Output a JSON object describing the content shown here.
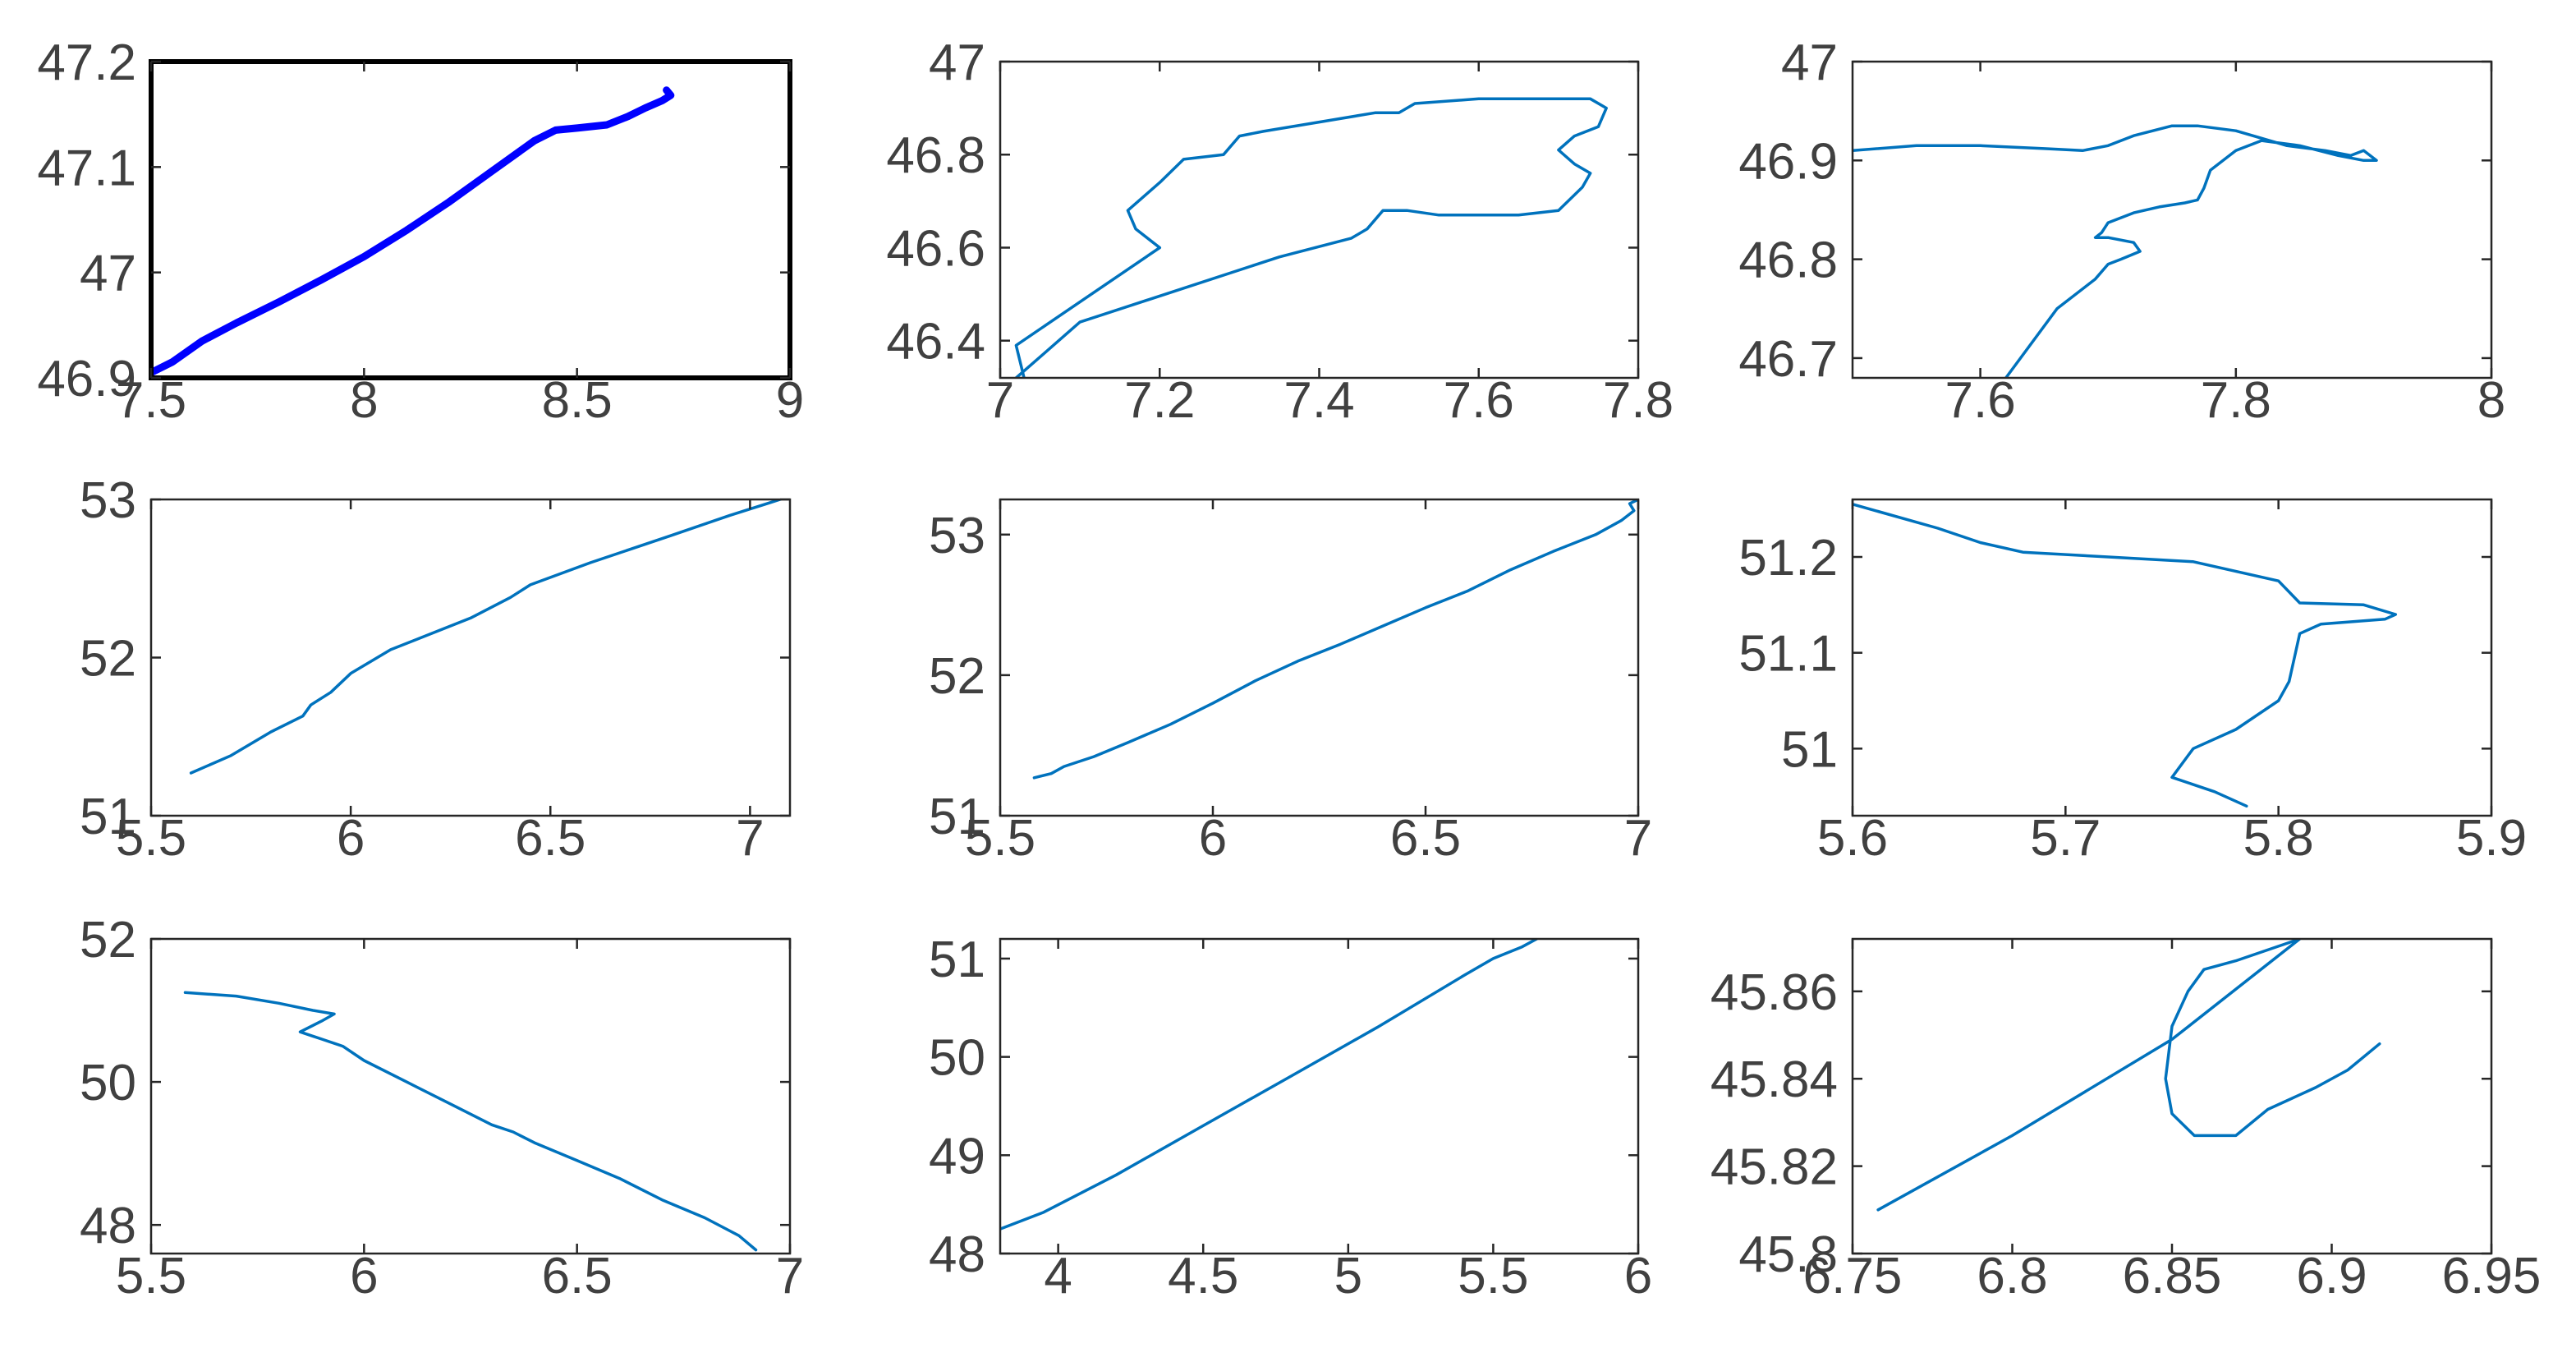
{
  "colors": {
    "background": "#ffffff",
    "axis": "#262626",
    "tick_label": "#404040",
    "trajectory": "#0072bd",
    "trajectory_highlight": "#0000ff",
    "highlight_frame": "#000000"
  },
  "chart_data": [
    {
      "type": "line",
      "xlim": [
        7.5,
        9
      ],
      "ylim": [
        46.9,
        47.2
      ],
      "xticks": [
        {
          "v": 7.5,
          "label": "7.5"
        },
        {
          "v": 8,
          "label": "8"
        },
        {
          "v": 8.5,
          "label": "8.5"
        },
        {
          "v": 9,
          "label": "9"
        }
      ],
      "yticks": [
        {
          "v": 46.9,
          "label": "46.9"
        },
        {
          "v": 47,
          "label": "47"
        },
        {
          "v": 47.1,
          "label": "47.1"
        },
        {
          "v": 47.2,
          "label": "47.2"
        }
      ],
      "highlight": true,
      "grid": false,
      "series": [
        {
          "x": [
            7.5,
            7.55,
            7.62,
            7.7,
            7.8,
            7.9,
            8.0,
            8.1,
            8.2,
            8.3,
            8.4,
            8.45,
            8.5,
            8.57,
            8.62,
            8.66,
            8.7,
            8.72,
            8.71
          ],
          "y": [
            46.905,
            46.915,
            46.935,
            46.952,
            46.972,
            46.993,
            47.015,
            47.04,
            47.067,
            47.096,
            47.125,
            47.135,
            47.137,
            47.14,
            47.148,
            47.156,
            47.163,
            47.168,
            47.173
          ]
        }
      ]
    },
    {
      "type": "line",
      "xlim": [
        7,
        7.8
      ],
      "ylim": [
        46.32,
        47
      ],
      "xticks": [
        {
          "v": 7,
          "label": "7"
        },
        {
          "v": 7.2,
          "label": "7.2"
        },
        {
          "v": 7.4,
          "label": "7.4"
        },
        {
          "v": 7.6,
          "label": "7.6"
        },
        {
          "v": 7.8,
          "label": "7.8"
        }
      ],
      "yticks": [
        {
          "v": 46.4,
          "label": "46.4"
        },
        {
          "v": 46.6,
          "label": "46.6"
        },
        {
          "v": 46.8,
          "label": "46.8"
        },
        {
          "v": 47,
          "label": "47"
        }
      ],
      "grid": false,
      "series": [
        {
          "x": [
            7.03,
            7.02,
            7.2,
            7.17,
            7.16,
            7.2,
            7.23,
            7.28,
            7.3,
            7.33,
            7.4,
            7.47,
            7.5,
            7.52,
            7.6,
            7.67,
            7.74,
            7.76,
            7.75,
            7.72,
            7.7,
            7.72,
            7.74,
            7.73,
            7.7,
            7.65,
            7.6,
            7.55,
            7.51,
            7.48,
            7.46,
            7.44,
            7.35,
            7.1,
            7.02
          ],
          "y": [
            46.32,
            46.39,
            46.6,
            46.64,
            46.68,
            46.74,
            46.79,
            46.8,
            46.84,
            46.85,
            46.87,
            46.89,
            46.89,
            46.91,
            46.92,
            46.92,
            46.92,
            46.9,
            46.86,
            46.84,
            46.81,
            46.78,
            46.76,
            46.73,
            46.68,
            46.67,
            46.67,
            46.67,
            46.68,
            46.68,
            46.64,
            46.62,
            46.58,
            46.44,
            46.32
          ]
        }
      ]
    },
    {
      "type": "line",
      "xlim": [
        7.5,
        8
      ],
      "ylim": [
        46.68,
        47
      ],
      "xticks": [
        {
          "v": 7.6,
          "label": "7.6"
        },
        {
          "v": 7.8,
          "label": "7.8"
        },
        {
          "v": 8,
          "label": "8"
        }
      ],
      "yticks": [
        {
          "v": 46.7,
          "label": "46.7"
        },
        {
          "v": 46.8,
          "label": "46.8"
        },
        {
          "v": 46.9,
          "label": "46.9"
        },
        {
          "v": 47,
          "label": "47"
        }
      ],
      "grid": false,
      "series": [
        {
          "x": [
            7.5,
            7.55,
            7.6,
            7.65,
            7.68,
            7.7,
            7.72,
            7.75,
            7.77,
            7.8,
            7.84,
            7.87,
            7.89,
            7.9,
            7.91,
            7.9,
            7.88,
            7.85,
            7.82,
            7.8,
            7.78,
            7.775,
            7.77,
            7.76,
            7.74,
            7.72,
            7.7,
            7.695,
            7.69,
            7.7,
            7.72,
            7.725,
            7.71,
            7.7,
            7.69,
            7.66,
            7.62
          ],
          "y": [
            46.91,
            46.915,
            46.915,
            46.912,
            46.91,
            46.915,
            46.925,
            46.935,
            46.935,
            46.93,
            46.915,
            46.91,
            46.905,
            46.91,
            46.9,
            46.9,
            46.905,
            46.915,
            46.92,
            46.91,
            46.89,
            46.872,
            46.86,
            46.857,
            46.853,
            46.847,
            46.837,
            46.827,
            46.822,
            46.822,
            46.817,
            46.808,
            46.8,
            46.795,
            46.78,
            46.75,
            46.68
          ]
        }
      ]
    },
    {
      "type": "line",
      "xlim": [
        5.5,
        7.1
      ],
      "ylim": [
        51,
        53
      ],
      "xticks": [
        {
          "v": 5.5,
          "label": "5.5"
        },
        {
          "v": 6,
          "label": "6"
        },
        {
          "v": 6.5,
          "label": "6.5"
        },
        {
          "v": 7,
          "label": "7"
        }
      ],
      "yticks": [
        {
          "v": 51,
          "label": "51"
        },
        {
          "v": 52,
          "label": "52"
        },
        {
          "v": 53,
          "label": "53"
        }
      ],
      "grid": false,
      "series": [
        {
          "x": [
            5.6,
            5.7,
            5.8,
            5.88,
            5.9,
            5.95,
            6.0,
            6.1,
            6.2,
            6.3,
            6.4,
            6.45,
            6.6,
            6.8,
            6.95,
            7.05,
            7.1
          ],
          "y": [
            51.27,
            51.38,
            51.53,
            51.63,
            51.7,
            51.78,
            51.9,
            52.05,
            52.15,
            52.25,
            52.38,
            52.46,
            52.6,
            52.77,
            52.9,
            52.98,
            53.02
          ]
        }
      ]
    },
    {
      "type": "line",
      "xlim": [
        5.5,
        7
      ],
      "ylim": [
        51,
        53.25
      ],
      "xticks": [
        {
          "v": 5.5,
          "label": "5.5"
        },
        {
          "v": 6,
          "label": "6"
        },
        {
          "v": 6.5,
          "label": "6.5"
        },
        {
          "v": 7,
          "label": "7"
        }
      ],
      "yticks": [
        {
          "v": 51,
          "label": "51"
        },
        {
          "v": 52,
          "label": "52"
        },
        {
          "v": 53,
          "label": "53"
        }
      ],
      "grid": false,
      "series": [
        {
          "x": [
            5.58,
            5.62,
            5.65,
            5.72,
            5.8,
            5.9,
            6.0,
            6.1,
            6.2,
            6.3,
            6.4,
            6.5,
            6.6,
            6.7,
            6.8,
            6.9,
            6.96,
            6.99,
            6.98,
            7.0
          ],
          "y": [
            51.27,
            51.3,
            51.35,
            51.42,
            51.52,
            51.65,
            51.8,
            51.96,
            52.1,
            52.22,
            52.35,
            52.48,
            52.6,
            52.75,
            52.88,
            53.0,
            53.1,
            53.17,
            53.22,
            53.25
          ]
        }
      ]
    },
    {
      "type": "line",
      "xlim": [
        5.6,
        5.9
      ],
      "ylim": [
        50.93,
        51.26
      ],
      "xticks": [
        {
          "v": 5.6,
          "label": "5.6"
        },
        {
          "v": 5.7,
          "label": "5.7"
        },
        {
          "v": 5.8,
          "label": "5.8"
        },
        {
          "v": 5.9,
          "label": "5.9"
        }
      ],
      "yticks": [
        {
          "v": 51,
          "label": "51"
        },
        {
          "v": 51.1,
          "label": "51.1"
        },
        {
          "v": 51.2,
          "label": "51.2"
        }
      ],
      "grid": false,
      "series": [
        {
          "x": [
            5.6,
            5.64,
            5.66,
            5.68,
            5.72,
            5.76,
            5.8,
            5.81,
            5.84,
            5.855,
            5.85,
            5.82,
            5.81,
            5.808,
            5.805,
            5.8,
            5.79,
            5.78,
            5.76,
            5.75,
            5.77,
            5.785
          ],
          "y": [
            51.255,
            51.23,
            51.215,
            51.205,
            51.2,
            51.195,
            51.175,
            51.152,
            51.15,
            51.14,
            51.135,
            51.13,
            51.12,
            51.1,
            51.07,
            51.05,
            51.035,
            51.02,
            51.0,
            50.97,
            50.955,
            50.94
          ]
        }
      ]
    },
    {
      "type": "line",
      "xlim": [
        5.5,
        7
      ],
      "ylim": [
        47.6,
        52
      ],
      "xticks": [
        {
          "v": 5.5,
          "label": "5.5"
        },
        {
          "v": 6,
          "label": "6"
        },
        {
          "v": 6.5,
          "label": "6.5"
        },
        {
          "v": 7,
          "label": "7"
        }
      ],
      "yticks": [
        {
          "v": 48,
          "label": "48"
        },
        {
          "v": 50,
          "label": "50"
        },
        {
          "v": 52,
          "label": "52"
        }
      ],
      "grid": false,
      "series": [
        {
          "x": [
            5.58,
            5.7,
            5.8,
            5.88,
            5.93,
            5.9,
            5.85,
            5.9,
            5.95,
            6.0,
            6.1,
            6.2,
            6.3,
            6.35,
            6.4,
            6.5,
            6.6,
            6.7,
            6.8,
            6.88,
            6.92
          ],
          "y": [
            51.25,
            51.2,
            51.1,
            51.0,
            50.95,
            50.85,
            50.7,
            50.6,
            50.5,
            50.3,
            50.0,
            49.7,
            49.4,
            49.3,
            49.15,
            48.9,
            48.65,
            48.35,
            48.1,
            47.85,
            47.65
          ]
        }
      ]
    },
    {
      "type": "line",
      "xlim": [
        3.8,
        6
      ],
      "ylim": [
        48,
        51.2
      ],
      "xticks": [
        {
          "v": 4,
          "label": "4"
        },
        {
          "v": 4.5,
          "label": "4.5"
        },
        {
          "v": 5,
          "label": "5"
        },
        {
          "v": 5.5,
          "label": "5.5"
        },
        {
          "v": 6,
          "label": "6"
        }
      ],
      "yticks": [
        {
          "v": 48,
          "label": "48"
        },
        {
          "v": 49,
          "label": "49"
        },
        {
          "v": 50,
          "label": "50"
        },
        {
          "v": 51,
          "label": "51"
        }
      ],
      "grid": false,
      "series": [
        {
          "x": [
            3.8,
            3.95,
            4.2,
            4.5,
            4.8,
            5.1,
            5.4,
            5.5,
            5.6,
            5.65
          ],
          "y": [
            48.25,
            48.42,
            48.8,
            49.3,
            49.8,
            50.3,
            50.83,
            51.0,
            51.12,
            51.2
          ]
        }
      ]
    },
    {
      "type": "line",
      "xlim": [
        6.75,
        6.95
      ],
      "ylim": [
        45.8,
        45.872
      ],
      "xticks": [
        {
          "v": 6.75,
          "label": "6.75"
        },
        {
          "v": 6.8,
          "label": "6.8"
        },
        {
          "v": 6.85,
          "label": "6.85"
        },
        {
          "v": 6.9,
          "label": "6.9"
        },
        {
          "v": 6.95,
          "label": "6.95"
        }
      ],
      "yticks": [
        {
          "v": 45.8,
          "label": "45.8"
        },
        {
          "v": 45.82,
          "label": "45.82"
        },
        {
          "v": 45.84,
          "label": "45.84"
        },
        {
          "v": 45.86,
          "label": "45.86"
        }
      ],
      "grid": false,
      "series": [
        {
          "x": [
            6.758,
            6.8,
            6.85,
            6.89,
            6.87,
            6.86,
            6.855,
            6.85,
            6.848,
            6.85,
            6.857,
            6.87,
            6.88,
            6.895,
            6.905,
            6.915
          ],
          "y": [
            45.81,
            45.827,
            45.849,
            45.872,
            45.867,
            45.865,
            45.86,
            45.852,
            45.84,
            45.832,
            45.827,
            45.827,
            45.833,
            45.838,
            45.842,
            45.848
          ]
        }
      ]
    }
  ]
}
